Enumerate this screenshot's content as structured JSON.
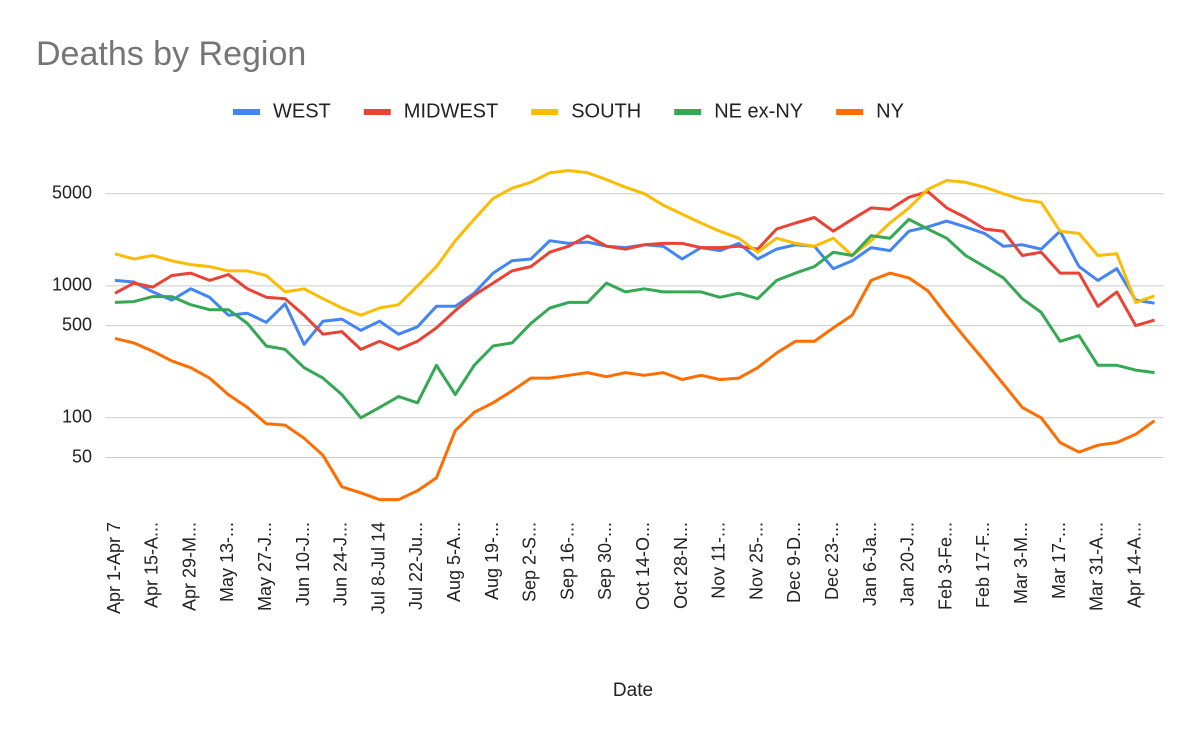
{
  "chart_data": {
    "type": "line",
    "title": "Deaths by Region",
    "x_label": "Date",
    "categories": [
      "Apr 1-Apr 7",
      null,
      "Apr 15-A...",
      null,
      "Apr 29-M...",
      null,
      "May 13-...",
      null,
      "May 27-J...",
      null,
      "Jun 10-J...",
      null,
      "Jun 24-J...",
      null,
      "Jul 8-Jul 14",
      null,
      "Jul 22-Ju...",
      null,
      "Aug 5-A...",
      null,
      "Aug 19-...",
      null,
      "Sep 2-S...",
      null,
      "Sep 16-...",
      null,
      "Sep 30-...",
      null,
      "Oct 14-O...",
      null,
      "Oct 28-N...",
      null,
      "Nov 11-...",
      null,
      "Nov 25-...",
      null,
      "Dec 9-D...",
      null,
      "Dec 23-...",
      null,
      "Jan 6-Ja...",
      null,
      "Jan 20-J...",
      null,
      "Feb 3-Fe...",
      null,
      "Feb 17-F...",
      null,
      "Mar 3-M...",
      null,
      "Mar 17-...",
      null,
      "Mar 31-A...",
      null,
      "Apr 14-A...",
      null
    ],
    "series": [
      {
        "name": "WEST",
        "color": "#4285f4",
        "values": [
          1100,
          1070,
          900,
          780,
          950,
          820,
          600,
          620,
          530,
          730,
          360,
          540,
          560,
          460,
          540,
          430,
          490,
          700,
          700,
          880,
          1250,
          1550,
          1600,
          2200,
          2100,
          2150,
          2000,
          1950,
          2050,
          2000,
          1600,
          1950,
          1850,
          2100,
          1600,
          1900,
          2050,
          2000,
          1350,
          1550,
          1950,
          1850,
          2600,
          2800,
          3100,
          2800,
          2500,
          2000,
          2050,
          1900,
          2600,
          1400,
          1100,
          1350,
          780,
          740
        ]
      },
      {
        "name": "MIDWEST",
        "color": "#ea4335",
        "values": [
          880,
          1050,
          980,
          1200,
          1250,
          1100,
          1220,
          950,
          820,
          800,
          600,
          430,
          450,
          330,
          380,
          330,
          380,
          480,
          650,
          850,
          1050,
          1300,
          1400,
          1800,
          2000,
          2400,
          2000,
          1900,
          2050,
          2100,
          2100,
          1950,
          1950,
          2000,
          1900,
          2700,
          3000,
          3300,
          2600,
          3200,
          3900,
          3800,
          4700,
          5200,
          3900,
          3300,
          2700,
          2600,
          1700,
          1800,
          1250,
          1250,
          700,
          900,
          500,
          550
        ]
      },
      {
        "name": "SOUTH",
        "color": "#fbbc04",
        "values": [
          1750,
          1600,
          1700,
          1550,
          1450,
          1400,
          1300,
          1300,
          1200,
          900,
          950,
          800,
          680,
          600,
          680,
          720,
          1000,
          1400,
          2200,
          3200,
          4600,
          5500,
          6100,
          7200,
          7500,
          7200,
          6400,
          5600,
          5000,
          4100,
          3500,
          3000,
          2600,
          2300,
          1800,
          2300,
          2100,
          2000,
          2300,
          1700,
          2200,
          3000,
          3900,
          5400,
          6300,
          6100,
          5600,
          5000,
          4500,
          4300,
          2600,
          2500,
          1700,
          1750,
          750,
          840
        ]
      },
      {
        "name": "NE ex-NY",
        "color": "#34a853",
        "values": [
          750,
          760,
          830,
          830,
          720,
          660,
          660,
          520,
          350,
          330,
          240,
          200,
          150,
          100,
          120,
          145,
          130,
          250,
          150,
          250,
          350,
          370,
          520,
          680,
          750,
          750,
          1050,
          900,
          950,
          900,
          900,
          900,
          820,
          880,
          800,
          1100,
          1250,
          1400,
          1800,
          1700,
          2400,
          2300,
          3200,
          2700,
          2300,
          1700,
          1400,
          1150,
          800,
          630,
          380,
          420,
          250,
          250,
          230,
          220
        ]
      },
      {
        "name": "NY",
        "color": "#ff6d01",
        "values": [
          400,
          370,
          320,
          270,
          240,
          200,
          150,
          120,
          90,
          88,
          70,
          52,
          30,
          27,
          24,
          24,
          28,
          35,
          80,
          110,
          130,
          160,
          200,
          200,
          210,
          220,
          205,
          220,
          210,
          220,
          195,
          210,
          195,
          200,
          240,
          310,
          380,
          380,
          480,
          600,
          1100,
          1250,
          1150,
          920,
          600,
          400,
          270,
          180,
          120,
          100,
          65,
          55,
          62,
          65,
          75,
          95
        ]
      }
    ],
    "ylim": [
      20,
      10000
    ],
    "yticks": [
      50,
      100,
      500,
      1000,
      5000
    ],
    "log_scale": true,
    "grid": true
  }
}
